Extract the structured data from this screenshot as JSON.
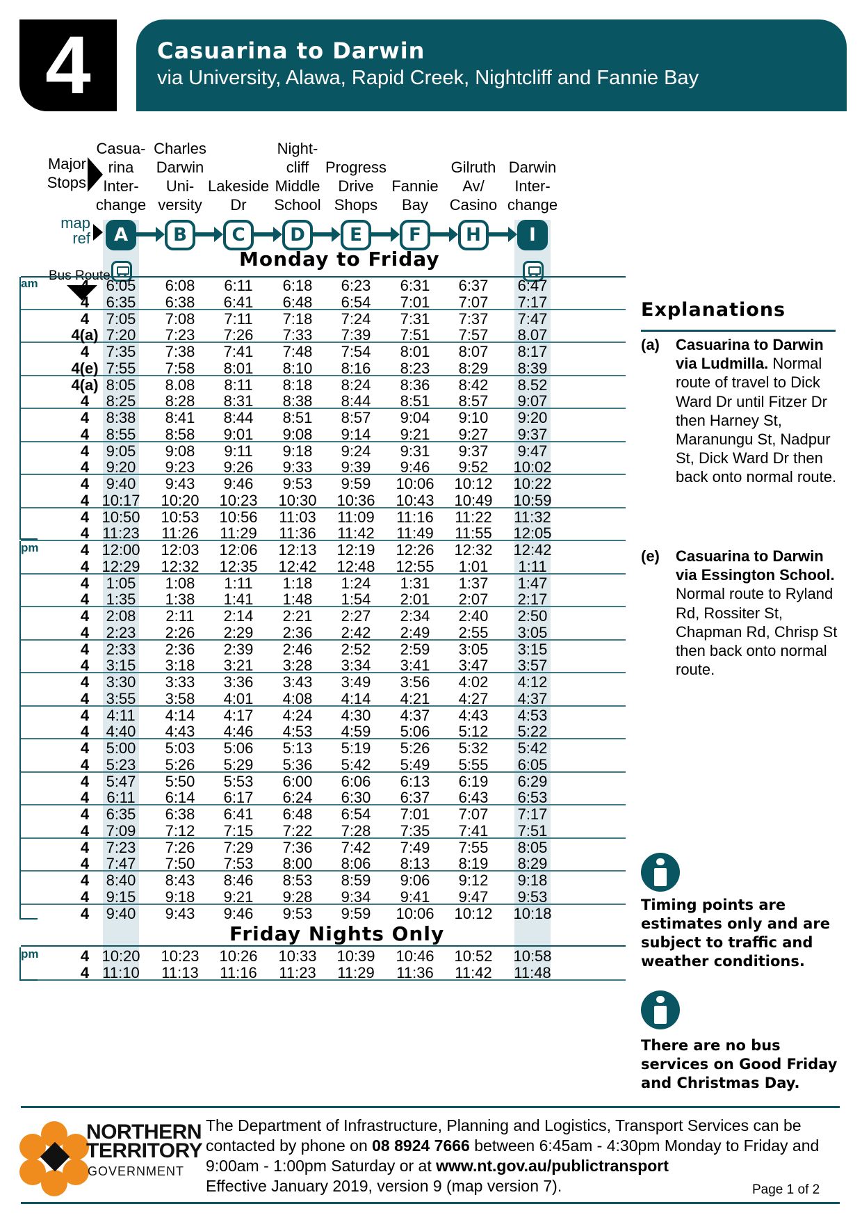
{
  "header": {
    "route_number": "4",
    "title": "Casuarina to Darwin",
    "subtitle": "via University, Alawa, Rapid Creek, Nightcliff and Fannie Bay"
  },
  "labels": {
    "major_stops": "Major\nStops",
    "map_ref": "map\nref",
    "bus_route": "Bus Route"
  },
  "stops": [
    {
      "name": "Casua-\nrina\nInter-\nchange",
      "ref": "A"
    },
    {
      "name": "Charles\nDarwin\nUni-\nversity",
      "ref": "B"
    },
    {
      "name": "Lakeside\nDr",
      "ref": "C"
    },
    {
      "name": "Night-\ncliff\nMiddle\nSchool",
      "ref": "D"
    },
    {
      "name": "Progress\nDrive\nShops",
      "ref": "E"
    },
    {
      "name": "Fannie\nBay",
      "ref": "F"
    },
    {
      "name": "Gilruth\nAv/\nCasino",
      "ref": "H"
    },
    {
      "name": "Darwin\nInter-\nchange",
      "ref": "I"
    }
  ],
  "sections": {
    "weekday_title": "Monday to Friday",
    "friday_title": "Friday Nights Only",
    "am_label": "am",
    "pm_label": "pm"
  },
  "weekday_am": [
    {
      "route": "4",
      "times": [
        "6:05",
        "6:08",
        "6:11",
        "6:18",
        "6:23",
        "6:31",
        "6:37",
        "6:47"
      ]
    },
    {
      "route": "4",
      "times": [
        "6:35",
        "6:38",
        "6:41",
        "6:48",
        "6:54",
        "7:01",
        "7:07",
        "7:17"
      ]
    },
    {
      "route": "4",
      "times": [
        "7:05",
        "7:08",
        "7:11",
        "7:18",
        "7:24",
        "7:31",
        "7:37",
        "7:47"
      ]
    },
    {
      "route": "4(a)",
      "times": [
        "7:20",
        "7:23",
        "7:26",
        "7:33",
        "7:39",
        "7:51",
        "7:57",
        "8.07"
      ]
    },
    {
      "route": "4",
      "times": [
        "7:35",
        "7:38",
        "7:41",
        "7:48",
        "7:54",
        "8:01",
        "8:07",
        "8:17"
      ]
    },
    {
      "route": "4(e)",
      "times": [
        "7:55",
        "7:58",
        "8:01",
        "8:10",
        "8:16",
        "8:23",
        "8:29",
        "8:39"
      ]
    },
    {
      "route": "4(a)",
      "times": [
        "8:05",
        "8.08",
        "8:11",
        "8:18",
        "8:24",
        "8:36",
        "8:42",
        "8.52"
      ]
    },
    {
      "route": "4",
      "times": [
        "8:25",
        "8:28",
        "8:31",
        "8:38",
        "8:44",
        "8:51",
        "8:57",
        "9:07"
      ]
    },
    {
      "route": "4",
      "times": [
        "8:38",
        "8:41",
        "8:44",
        "8:51",
        "8:57",
        "9:04",
        "9:10",
        "9:20"
      ]
    },
    {
      "route": "4",
      "times": [
        "8:55",
        "8:58",
        "9:01",
        "9:08",
        "9:14",
        "9:21",
        "9:27",
        "9:37"
      ]
    },
    {
      "route": "4",
      "times": [
        "9:05",
        "9:08",
        "9:11",
        "9:18",
        "9:24",
        "9:31",
        "9:37",
        "9:47"
      ]
    },
    {
      "route": "4",
      "times": [
        "9:20",
        "9:23",
        "9:26",
        "9:33",
        "9:39",
        "9:46",
        "9:52",
        "10:02"
      ]
    },
    {
      "route": "4",
      "times": [
        "9:40",
        "9:43",
        "9:46",
        "9:53",
        "9:59",
        "10:06",
        "10:12",
        "10:22"
      ]
    },
    {
      "route": "4",
      "times": [
        "10:17",
        "10:20",
        "10:23",
        "10:30",
        "10:36",
        "10:43",
        "10:49",
        "10:59"
      ]
    },
    {
      "route": "4",
      "times": [
        "10:50",
        "10:53",
        "10:56",
        "11:03",
        "11:09",
        "11:16",
        "11:22",
        "11:32"
      ]
    },
    {
      "route": "4",
      "times": [
        "11:23",
        "11:26",
        "11:29",
        "11:36",
        "11:42",
        "11:49",
        "11:55",
        "12:05"
      ]
    }
  ],
  "weekday_pm": [
    {
      "route": "4",
      "times": [
        "12:00",
        "12:03",
        "12:06",
        "12:13",
        "12:19",
        "12:26",
        "12:32",
        "12:42"
      ]
    },
    {
      "route": "4",
      "times": [
        "12:29",
        "12:32",
        "12:35",
        "12:42",
        "12:48",
        "12:55",
        "1:01",
        "1:11"
      ]
    },
    {
      "route": "4",
      "times": [
        "1:05",
        "1:08",
        "1:11",
        "1:18",
        "1:24",
        "1:31",
        "1:37",
        "1:47"
      ]
    },
    {
      "route": "4",
      "times": [
        "1:35",
        "1:38",
        "1:41",
        "1:48",
        "1:54",
        "2:01",
        "2:07",
        "2:17"
      ]
    },
    {
      "route": "4",
      "times": [
        "2:08",
        "2:11",
        "2:14",
        "2:21",
        "2:27",
        "2:34",
        "2:40",
        "2:50"
      ]
    },
    {
      "route": "4",
      "times": [
        "2:23",
        "2:26",
        "2:29",
        "2:36",
        "2:42",
        "2:49",
        "2:55",
        "3:05"
      ]
    },
    {
      "route": "4",
      "times": [
        "2:33",
        "2:36",
        "2:39",
        "2:46",
        "2:52",
        "2:59",
        "3:05",
        "3:15"
      ]
    },
    {
      "route": "4",
      "times": [
        "3:15",
        "3:18",
        "3:21",
        "3:28",
        "3:34",
        "3:41",
        "3:47",
        "3:57"
      ]
    },
    {
      "route": "4",
      "times": [
        "3:30",
        "3:33",
        "3:36",
        "3:43",
        "3:49",
        "3:56",
        "4:02",
        "4:12"
      ]
    },
    {
      "route": "4",
      "times": [
        "3:55",
        "3:58",
        "4:01",
        "4:08",
        "4:14",
        "4:21",
        "4:27",
        "4:37"
      ]
    },
    {
      "route": "4",
      "times": [
        "4:11",
        "4:14",
        "4:17",
        "4:24",
        "4:30",
        "4:37",
        "4:43",
        "4:53"
      ]
    },
    {
      "route": "4",
      "times": [
        "4:40",
        "4:43",
        "4:46",
        "4:53",
        "4:59",
        "5:06",
        "5:12",
        "5:22"
      ]
    },
    {
      "route": "4",
      "times": [
        "5:00",
        "5:03",
        "5:06",
        "5:13",
        "5:19",
        "5:26",
        "5:32",
        "5:42"
      ]
    },
    {
      "route": "4",
      "times": [
        "5:23",
        "5:26",
        "5:29",
        "5:36",
        "5:42",
        "5:49",
        "5:55",
        "6:05"
      ]
    },
    {
      "route": "4",
      "times": [
        "5:47",
        "5:50",
        "5:53",
        "6:00",
        "6:06",
        "6:13",
        "6:19",
        "6:29"
      ]
    },
    {
      "route": "4",
      "times": [
        "6:11",
        "6:14",
        "6:17",
        "6:24",
        "6:30",
        "6:37",
        "6:43",
        "6:53"
      ]
    },
    {
      "route": "4",
      "times": [
        "6:35",
        "6:38",
        "6:41",
        "6:48",
        "6:54",
        "7:01",
        "7:07",
        "7:17"
      ]
    },
    {
      "route": "4",
      "times": [
        "7:09",
        "7:12",
        "7:15",
        "7:22",
        "7:28",
        "7:35",
        "7:41",
        "7:51"
      ]
    },
    {
      "route": "4",
      "times": [
        "7:23",
        "7:26",
        "7:29",
        "7:36",
        "7:42",
        "7:49",
        "7:55",
        "8:05"
      ]
    },
    {
      "route": "4",
      "times": [
        "7:47",
        "7:50",
        "7:53",
        "8:00",
        "8:06",
        "8:13",
        "8:19",
        "8:29"
      ]
    },
    {
      "route": "4",
      "times": [
        "8:40",
        "8:43",
        "8:46",
        "8:53",
        "8:59",
        "9:06",
        "9:12",
        "9:18"
      ]
    },
    {
      "route": "4",
      "times": [
        "9:15",
        "9:18",
        "9:21",
        "9:28",
        "9:34",
        "9:41",
        "9:47",
        "9:53"
      ]
    },
    {
      "route": "4",
      "times": [
        "9:40",
        "9:43",
        "9:46",
        "9:53",
        "9:59",
        "10:06",
        "10:12",
        "10:18"
      ]
    }
  ],
  "friday_pm": [
    {
      "route": "4",
      "times": [
        "10:20",
        "10:23",
        "10:26",
        "10:33",
        "10:39",
        "10:46",
        "10:52",
        "10:58"
      ]
    },
    {
      "route": "4",
      "times": [
        "11:10",
        "11:13",
        "11:16",
        "11:23",
        "11:29",
        "11:36",
        "11:42",
        "11:48"
      ]
    }
  ],
  "explanations": {
    "title": "Explanations",
    "items": [
      {
        "tag": "(a)",
        "heading": "Casuarina to Darwin via Ludmilla.",
        "body": "Normal route of travel to Dick Ward Dr until Fitzer Dr then Harney St, Maranungu St, Nadpur St, Dick Ward Dr then back onto normal route."
      },
      {
        "tag": "(e)",
        "heading": "Casuarina to Darwin via Essington School.",
        "body": "Normal route to Ryland Rd, Rossiter St, Chapman Rd, Chrisp St then back onto normal route."
      }
    ]
  },
  "notes": [
    {
      "icon": "info-icon",
      "text": "Timing points are estimates only and are subject to traffic and weather conditions."
    },
    {
      "icon": "info-icon",
      "text": "There are no bus services on Good Friday and Christmas Day."
    }
  ],
  "footer": {
    "logo_line1": "NORTHERN",
    "logo_line2": "TERRITORY",
    "logo_line3": "GOVERNMENT",
    "contact_pre": "The Department of Infrastructure, Planning and Logistics, Transport Services can be contacted by phone on ",
    "phone": "08 8924 7666",
    "contact_mid": " between 6:45am - 4:30pm Monday to Friday and 9:00am - 1:00pm Saturday or at ",
    "website": "www.nt.gov.au/publictransport",
    "effective": "Effective January 2019, version 9 (map version 7).",
    "page": "Page 1 of 2"
  },
  "colors": {
    "teal": "#0a5562",
    "band": "#dde9ec",
    "logo_orange": "#f08b1e"
  }
}
